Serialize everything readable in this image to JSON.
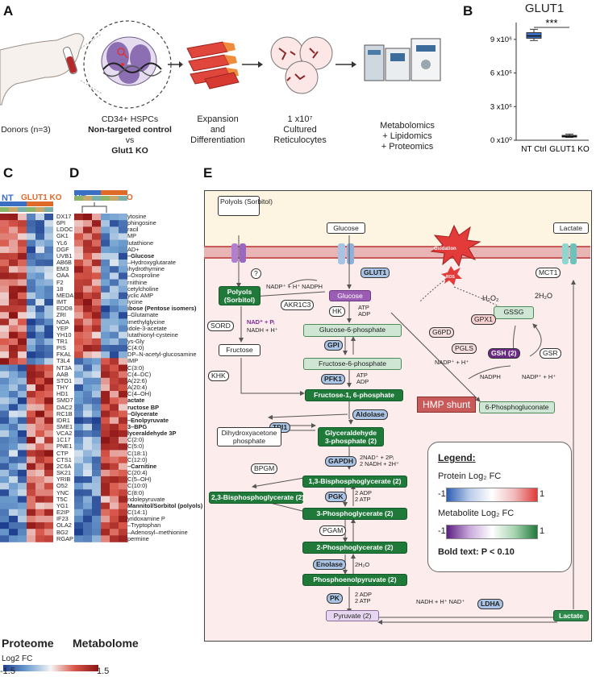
{
  "panels": {
    "a": "A",
    "b": "B",
    "c": "C",
    "d": "D",
    "e": "E"
  },
  "workflow": {
    "donors": "Donors (n=3)",
    "hspc_line1": "CD34+ HSPCs",
    "hspc_line2": "Non-targeted control",
    "hspc_line3": "vs",
    "hspc_line4": "Glut1 KO",
    "expansion_line1": "Expansion",
    "expansion_line2": "and",
    "expansion_line3": "Differentiation",
    "cultured_line1": "1 x10⁷",
    "cultured_line2": "Cultured",
    "cultured_line3": "Reticulocytes",
    "omics_line1": "Metabolomics",
    "omics_line2": "+ Lipidomics",
    "omics_line3": "+ Proteomics"
  },
  "colors": {
    "nt": "#3a6fc4",
    "ko": "#e06a2a",
    "green": "#1f7a3a",
    "purple": "#9a5db3"
  },
  "chart_data": {
    "type": "box",
    "title": "GLUT1",
    "categories": [
      "NT Ctrl",
      "GLUT1 KO"
    ],
    "series": [
      {
        "values": [
          9300000,
          350000
        ]
      }
    ],
    "box_stats": [
      {
        "min": 8900000,
        "q1": 9100000,
        "median": 9300000,
        "q3": 9600000,
        "max": 9900000
      },
      {
        "min": 250000,
        "q1": 300000,
        "median": 350000,
        "q3": 430000,
        "max": 550000
      }
    ],
    "yticks": [
      "0 x10⁰",
      "3 x10⁶",
      "6 x10⁶",
      "9 x10⁶"
    ],
    "ytick_values": [
      0,
      3000000,
      6000000,
      9000000
    ],
    "ylim": [
      0,
      10500000
    ],
    "significance": "***"
  },
  "heatmap": {
    "nt_label": "NT",
    "ko_label": "GLUT1 KO",
    "nt_label_d": "NT",
    "ko_label_d": "O",
    "proteome_title": "Proteome",
    "metabolome_title": "Metabolome",
    "proteins": [
      "DX17",
      "6PI",
      "LDOC",
      "GK1",
      "YL6",
      "DGF",
      "UVB1",
      "AB6B",
      "EM3",
      "OAA",
      "F2",
      "18",
      "MEDA",
      "IMT",
      "EDD8",
      "ZRI",
      "NOA",
      "YEP",
      "YH10",
      "TR1",
      "PIS",
      "FKAL",
      "T3L4",
      "NT3A",
      "AAB",
      "STO1",
      "THY",
      "HD1",
      "SMD7",
      "DAC2",
      "RC1B",
      "IDR1",
      "SME1",
      "VCA2",
      "1C17",
      "PNE1",
      "CTP",
      "CTS1",
      "2C6A",
      "SK21",
      "YRIB",
      "O52",
      "YNC",
      "T5C",
      "YG1",
      "E2IP",
      "IF23",
      "OLA2",
      "BG2",
      "RGAP1"
    ],
    "metabolites": [
      "ytosine",
      "phingosine",
      "racil",
      "MP",
      "lutathione",
      "AD+",
      "–Glucose",
      "–Hydroxyglutarate",
      "ihydrothymine",
      "–Oxoproline",
      "rnithine",
      "cetylcholine",
      "yclic AMP",
      "lycine",
      "ibose (Pentose isomers)",
      "–Glutamate",
      "imethylglycine",
      "idole-3-acetate",
      "lutathionyl-cysteine",
      "ys-Gly",
      "C(4:0)",
      "DP–N-acetyl-glucosamine",
      "IMP",
      "C(3:0)",
      "C(4–DC)",
      "A(22:6)",
      "A(20:4)",
      "C(4–OH)",
      "actate",
      "ructose BP",
      "–Glycerate",
      "–Enolpyruvate",
      "3–BPG",
      "lyceraldehyde 3P",
      "C(2:0)",
      "C(5:0)",
      "C(18:1)",
      "C(12:0)",
      "–Carnitine",
      "C(20:4)",
      "C(5–OH)",
      "C(10:0)",
      "C(8:0)",
      "ndolepyruvate",
      "Mannitol/Sorbitol (polyols)",
      "C(14:1)",
      "yridoxamine P",
      "–Tryptophan",
      "–Adenosyl–methionine",
      "permine"
    ],
    "metabolite_bold": [
      6,
      14,
      28,
      29,
      30,
      31,
      32,
      33,
      38,
      44
    ],
    "colorbar_title": "Log2 FC",
    "colorbar_min": "-1.5",
    "colorbar_max": "1.5"
  },
  "pathway": {
    "polyols_top": "Polyols\n(Sorbitol)",
    "glucose_top": "Glucose",
    "lactate_top": "Lactate",
    "oxidation": "Oxidation",
    "ros": "ROS",
    "glut1": "GLUT1",
    "mct1": "MCT1",
    "q": "?",
    "polyols_in": "Polyols\n(Sorbitol)",
    "nadp_left": "NADP⁺ + H⁺  NADPH",
    "akr1c3": "AKR1C3",
    "glucose_in": "Glucose",
    "hk": "HK",
    "atp_adp_1": "ATP\nADP",
    "h2o2": "H₂O₂",
    "h2o": "2H₂O",
    "gssg": "GSSG",
    "gpx1": "GPX1",
    "sord": "SORD",
    "nad_pi": "NAD⁺ + Pᵢ",
    "nadh_h": "NADH + H⁺",
    "g6p": "Glucose-6-phosphate",
    "g6pd": "G6PD",
    "gpi": "GPI",
    "fructose": "Fructose",
    "pgls": "PGLS",
    "gsh": "GSH (2)",
    "gsr": "GSR",
    "f6p": "Fructose-6-phosphate",
    "nadp_h": "NADP⁺ + H⁺",
    "nadph": "NADPH",
    "nadp_right": "NADP⁺ + H⁺",
    "khk": "KHK",
    "pfk1": "PFK1",
    "atp_adp_2": "ATP\nADP",
    "f16p": "Fructose-1, 6-phosphate",
    "hmp": "HMP shunt",
    "pgluconate": "6-Phosphogluconate",
    "aldolase": "Aldolase",
    "tpi1": "TPI1",
    "dhap": "Dihydroxyacetone\nphosphate",
    "g3p": "Glyceraldehyde\n3-phosphate (2)",
    "gapdh": "GAPDH",
    "gapdh_cof": "2NAD⁺ + 2Pᵢ\n2 NADH + 2H⁺",
    "bpgm": "BPGM",
    "bpg13": "1,3-Bisphosphoglycerate (2)",
    "bpg23": "2,3-Bisphosphoglycerate (2)",
    "pgk": "PGK",
    "pgk_cof": "2 ADP\n2 ATP",
    "pg3": "3-Phosphoglycerate (2)",
    "pgam": "PGAM",
    "pg2": "2-Phosphoglycerate (2)",
    "enolase": "Enolase",
    "eno_cof": "2H₂O",
    "pep": "Phosphoenolpyruvate (2)",
    "pk": "PK",
    "pk_cof": "2 ADP\n2 ATP",
    "pyruvate": "Pyruvate (2)",
    "ldha_cof": "NADH + H⁺   NAD⁺",
    "ldha": "LDHA",
    "lactate_in": "Lactate"
  },
  "legend": {
    "title": "Legend:",
    "protein": "Protein Log₂ FC",
    "metabolite": "Metabolite Log₂ FC",
    "neg": "-1",
    "pos": "1",
    "neg2": "-1",
    "pos2": "1",
    "bold_note": "Bold text: P < 0.10"
  }
}
